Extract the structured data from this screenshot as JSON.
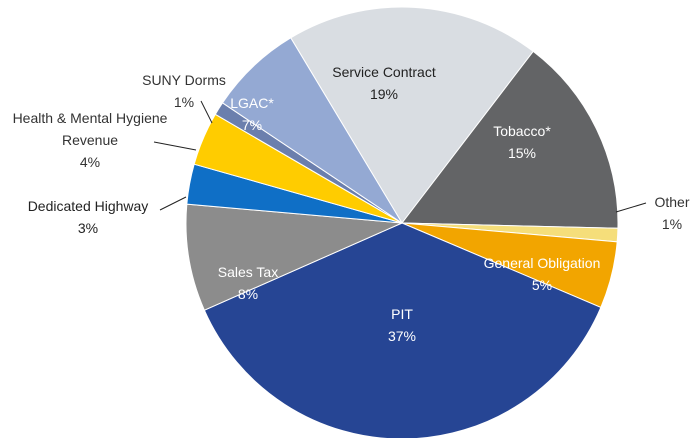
{
  "chart_data": {
    "type": "pie",
    "categories": [
      "Service Contract",
      "Tobacco*",
      "Other",
      "General Obligation",
      "PIT",
      "Sales Tax",
      "Dedicated Highway",
      "Health & Mental Hygiene Revenue",
      "SUNY Dorms",
      "LGAC*"
    ],
    "values": [
      19,
      15,
      1,
      5,
      37,
      8,
      3,
      4,
      1,
      7
    ],
    "value_labels": [
      "19%",
      "15%",
      "1%",
      "5%",
      "37%",
      "8%",
      "3%",
      "4%",
      "1%",
      "7%"
    ],
    "colors": [
      "#d9dde2",
      "#636466",
      "#f5de7a",
      "#f2a500",
      "#264594",
      "#8c8c8c",
      "#0f6fc6",
      "#ffcc00",
      "#6b7fad",
      "#94a9d3"
    ]
  }
}
